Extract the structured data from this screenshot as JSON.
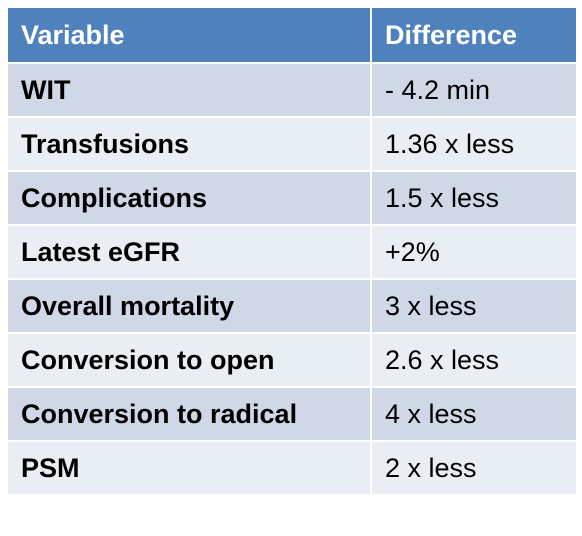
{
  "table": {
    "header": [
      "Variable",
      "Difference"
    ],
    "rows": [
      [
        "WIT",
        "- 4.2 min"
      ],
      [
        "Transfusions",
        "1.36 x less"
      ],
      [
        "Complications",
        "1.5 x less"
      ],
      [
        "Latest eGFR",
        "+2%"
      ],
      [
        "Overall mortality",
        "3 x less"
      ],
      [
        "Conversion to open",
        "2.6 x less"
      ],
      [
        "Conversion to radical",
        "4 x less"
      ],
      [
        "PSM",
        "2 x less"
      ]
    ]
  }
}
